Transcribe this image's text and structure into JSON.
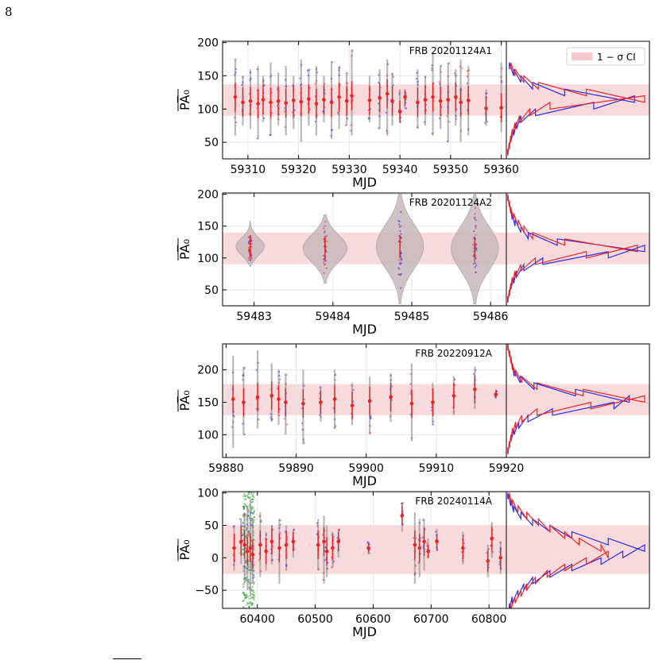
{
  "page_number": "8",
  "legend": {
    "label": "1 − σ CI",
    "swatch_color": "#f7c9cc"
  },
  "colors": {
    "grey": "#9a9a9a",
    "blue": "#2a2af0",
    "green": "#1f9a1f",
    "red": "#ee2222",
    "band": "#f9dadc",
    "grid": "#e6e6e6"
  },
  "chart_data": [
    {
      "type": "scatter",
      "title": "FRB 20201124A1",
      "xlabel": "MJD",
      "ylabel": "PA̅₀",
      "xlim": [
        59305,
        59361
      ],
      "ylim": [
        25,
        202
      ],
      "xticks": [
        59310,
        59320,
        59330,
        59340,
        59350,
        59360
      ],
      "yticks": [
        50,
        100,
        150,
        200
      ],
      "band": [
        90,
        137
      ],
      "bursts": [
        {
          "mjd": 59307.5,
          "pa": 118,
          "lo": 60,
          "hi": 175
        },
        {
          "mjd": 59309.0,
          "pa": 110,
          "lo": 75,
          "hi": 150
        },
        {
          "mjd": 59310.5,
          "pa": 112,
          "lo": 70,
          "hi": 160
        },
        {
          "mjd": 59312.0,
          "pa": 108,
          "lo": 55,
          "hi": 165
        },
        {
          "mjd": 59313.0,
          "pa": 114,
          "lo": 80,
          "hi": 150
        },
        {
          "mjd": 59314.5,
          "pa": 110,
          "lo": 60,
          "hi": 170
        },
        {
          "mjd": 59316.0,
          "pa": 112,
          "lo": 75,
          "hi": 155
        },
        {
          "mjd": 59317.5,
          "pa": 109,
          "lo": 60,
          "hi": 165
        },
        {
          "mjd": 59319.0,
          "pa": 113,
          "lo": 70,
          "hi": 150
        },
        {
          "mjd": 59320.5,
          "pa": 111,
          "lo": 50,
          "hi": 175
        },
        {
          "mjd": 59322.0,
          "pa": 115,
          "lo": 75,
          "hi": 160
        },
        {
          "mjd": 59323.5,
          "pa": 108,
          "lo": 60,
          "hi": 165
        },
        {
          "mjd": 59325.0,
          "pa": 114,
          "lo": 80,
          "hi": 150
        },
        {
          "mjd": 59326.5,
          "pa": 110,
          "lo": 55,
          "hi": 172
        },
        {
          "mjd": 59328.0,
          "pa": 118,
          "lo": 70,
          "hi": 165
        },
        {
          "mjd": 59329.5,
          "pa": 112,
          "lo": 75,
          "hi": 155
        },
        {
          "mjd": 59330.5,
          "pa": 120,
          "lo": 60,
          "hi": 190
        },
        {
          "mjd": 59334.0,
          "pa": 113,
          "lo": 80,
          "hi": 150
        },
        {
          "mjd": 59336.0,
          "pa": 117,
          "lo": 70,
          "hi": 160
        },
        {
          "mjd": 59337.5,
          "pa": 123,
          "lo": 60,
          "hi": 175
        },
        {
          "mjd": 59338.5,
          "pa": 112,
          "lo": 75,
          "hi": 155
        },
        {
          "mjd": 59340.0,
          "pa": 96,
          "lo": 80,
          "hi": 130
        },
        {
          "mjd": 59341.0,
          "pa": 118,
          "lo": 100,
          "hi": 130
        },
        {
          "mjd": 59343.5,
          "pa": 110,
          "lo": 70,
          "hi": 160
        },
        {
          "mjd": 59345.0,
          "pa": 114,
          "lo": 75,
          "hi": 150
        },
        {
          "mjd": 59346.5,
          "pa": 118,
          "lo": 60,
          "hi": 185
        },
        {
          "mjd": 59348.0,
          "pa": 112,
          "lo": 70,
          "hi": 165
        },
        {
          "mjd": 59349.5,
          "pa": 114,
          "lo": 50,
          "hi": 170
        },
        {
          "mjd": 59351.0,
          "pa": 118,
          "lo": 75,
          "hi": 160
        },
        {
          "mjd": 59352.0,
          "pa": 110,
          "lo": 50,
          "hi": 175
        },
        {
          "mjd": 59353.5,
          "pa": 113,
          "lo": 60,
          "hi": 165
        },
        {
          "mjd": 59357.0,
          "pa": 101,
          "lo": 75,
          "hi": 130
        },
        {
          "mjd": 59360.0,
          "pa": 102,
          "lo": 65,
          "hi": 170
        }
      ],
      "hist_bins": [
        35,
        45,
        55,
        65,
        75,
        85,
        95,
        105,
        115,
        125,
        135,
        145,
        155,
        165
      ],
      "hist_red": [
        1,
        2,
        3,
        4,
        6,
        9,
        16,
        30,
        95,
        55,
        22,
        12,
        6,
        3
      ],
      "hist_blue": [
        1,
        2,
        3,
        5,
        7,
        10,
        20,
        60,
        88,
        40,
        18,
        10,
        5,
        2
      ]
    },
    {
      "type": "violin",
      "title": "FRB 20201124A2",
      "xlabel": "MJD",
      "ylabel": "PA̅₀",
      "xlim": [
        59482.6,
        59486.2
      ],
      "ylim": [
        25,
        202
      ],
      "xticks": [
        59483,
        59484,
        59485,
        59486
      ],
      "yticks": [
        50,
        100,
        150,
        200
      ],
      "band": [
        90,
        140
      ],
      "violins": [
        {
          "mjd": 59482.95,
          "center": 118,
          "lo": 90,
          "hi": 158,
          "width": 0.18
        },
        {
          "mjd": 59483.9,
          "center": 115,
          "lo": 60,
          "hi": 168,
          "width": 0.28
        },
        {
          "mjd": 59484.85,
          "center": 118,
          "lo": 28,
          "hi": 200,
          "width": 0.3
        },
        {
          "mjd": 59485.8,
          "center": 115,
          "lo": 28,
          "hi": 200,
          "width": 0.3
        }
      ],
      "hist_bins": [
        35,
        45,
        55,
        65,
        75,
        85,
        95,
        105,
        115,
        125,
        135,
        145,
        155,
        165,
        175,
        185,
        195
      ],
      "hist_red": [
        1,
        2,
        3,
        4,
        6,
        10,
        20,
        55,
        90,
        40,
        18,
        12,
        8,
        5,
        3,
        2,
        1
      ],
      "hist_blue": [
        1,
        2,
        3,
        5,
        7,
        12,
        25,
        70,
        95,
        35,
        15,
        10,
        6,
        4,
        3,
        2,
        1
      ]
    },
    {
      "type": "scatter",
      "title": "FRB 20220912A",
      "xlabel": "MJD",
      "ylabel": "PA̅₀",
      "xlim": [
        59879.5,
        59920
      ],
      "ylim": [
        65,
        240
      ],
      "xticks": [
        59880,
        59890,
        59900,
        59910,
        59920
      ],
      "yticks": [
        100,
        150,
        200
      ],
      "band": [
        130,
        178
      ],
      "bursts": [
        {
          "mjd": 59881.0,
          "pa": 155,
          "lo": 80,
          "hi": 222
        },
        {
          "mjd": 59882.5,
          "pa": 150,
          "lo": 100,
          "hi": 205
        },
        {
          "mjd": 59884.5,
          "pa": 158,
          "lo": 110,
          "hi": 230
        },
        {
          "mjd": 59886.5,
          "pa": 160,
          "lo": 120,
          "hi": 210
        },
        {
          "mjd": 59887.5,
          "pa": 155,
          "lo": 115,
          "hi": 200
        },
        {
          "mjd": 59888.5,
          "pa": 150,
          "lo": 100,
          "hi": 195
        },
        {
          "mjd": 59891.0,
          "pa": 148,
          "lo": 85,
          "hi": 200
        },
        {
          "mjd": 59893.5,
          "pa": 150,
          "lo": 120,
          "hi": 175
        },
        {
          "mjd": 59895.5,
          "pa": 155,
          "lo": 110,
          "hi": 200
        },
        {
          "mjd": 59898.0,
          "pa": 145,
          "lo": 115,
          "hi": 180
        },
        {
          "mjd": 59900.5,
          "pa": 152,
          "lo": 100,
          "hi": 190
        },
        {
          "mjd": 59903.5,
          "pa": 158,
          "lo": 120,
          "hi": 195
        },
        {
          "mjd": 59906.5,
          "pa": 148,
          "lo": 90,
          "hi": 210
        },
        {
          "mjd": 59909.5,
          "pa": 150,
          "lo": 115,
          "hi": 180
        },
        {
          "mjd": 59912.5,
          "pa": 160,
          "lo": 130,
          "hi": 190
        },
        {
          "mjd": 59915.5,
          "pa": 170,
          "lo": 140,
          "hi": 205
        },
        {
          "mjd": 59918.5,
          "pa": 162,
          "lo": 155,
          "hi": 170
        }
      ],
      "hist_bins": [
        75,
        85,
        95,
        105,
        115,
        125,
        135,
        145,
        155,
        165,
        175,
        185,
        195,
        205,
        215,
        225,
        235
      ],
      "hist_red": [
        1,
        2,
        3,
        4,
        6,
        10,
        20,
        55,
        90,
        50,
        20,
        10,
        6,
        4,
        3,
        2,
        1
      ],
      "hist_blue": [
        1,
        2,
        3,
        5,
        8,
        14,
        30,
        70,
        80,
        45,
        18,
        9,
        5,
        4,
        3,
        2,
        1
      ]
    },
    {
      "type": "scatter",
      "title": "FRB 20240114A",
      "xlabel": "MJD",
      "ylabel": "PA̅₀",
      "xlim": [
        60340,
        60830
      ],
      "ylim": [
        -78,
        102
      ],
      "xticks": [
        60400,
        60500,
        60600,
        60700,
        60800
      ],
      "yticks": [
        -50,
        0,
        50,
        100
      ],
      "band": [
        -25,
        50
      ],
      "dense_mjd": [
        60375,
        60395
      ],
      "bursts": [
        {
          "mjd": 60360,
          "pa": 15,
          "lo": -20,
          "hi": 50
        },
        {
          "mjd": 60372,
          "pa": 25,
          "lo": -10,
          "hi": 60
        },
        {
          "mjd": 60378,
          "pa": 20,
          "lo": -40,
          "hi": 70
        },
        {
          "mjd": 60383,
          "pa": 10,
          "lo": -50,
          "hi": 80
        },
        {
          "mjd": 60388,
          "pa": 15,
          "lo": -60,
          "hi": 90
        },
        {
          "mjd": 60392,
          "pa": 5,
          "lo": -40,
          "hi": 60
        },
        {
          "mjd": 60405,
          "pa": 20,
          "lo": -30,
          "hi": 70
        },
        {
          "mjd": 60415,
          "pa": 10,
          "lo": -20,
          "hi": 40
        },
        {
          "mjd": 60425,
          "pa": 25,
          "lo": -10,
          "hi": 50
        },
        {
          "mjd": 60438,
          "pa": 15,
          "lo": -40,
          "hi": 60
        },
        {
          "mjd": 60450,
          "pa": 20,
          "lo": -20,
          "hi": 50
        },
        {
          "mjd": 60462,
          "pa": 25,
          "lo": 0,
          "hi": 45
        },
        {
          "mjd": 60505,
          "pa": 20,
          "lo": -20,
          "hi": 60
        },
        {
          "mjd": 60515,
          "pa": 25,
          "lo": -40,
          "hi": 65
        },
        {
          "mjd": 60520,
          "pa": 10,
          "lo": -30,
          "hi": 50
        },
        {
          "mjd": 60530,
          "pa": 15,
          "lo": -15,
          "hi": 40
        },
        {
          "mjd": 60540,
          "pa": 25,
          "lo": 0,
          "hi": 45
        },
        {
          "mjd": 60592,
          "pa": 15,
          "lo": 5,
          "hi": 25
        },
        {
          "mjd": 60650,
          "pa": 65,
          "lo": 40,
          "hi": 85
        },
        {
          "mjd": 60672,
          "pa": 20,
          "lo": -40,
          "hi": 70
        },
        {
          "mjd": 60680,
          "pa": 15,
          "lo": -30,
          "hi": 60
        },
        {
          "mjd": 60688,
          "pa": 25,
          "lo": -20,
          "hi": 60
        },
        {
          "mjd": 60695,
          "pa": 10,
          "lo": 0,
          "hi": 30
        },
        {
          "mjd": 60710,
          "pa": 25,
          "lo": 10,
          "hi": 45
        },
        {
          "mjd": 60755,
          "pa": 15,
          "lo": -10,
          "hi": 40
        },
        {
          "mjd": 60798,
          "pa": -5,
          "lo": -30,
          "hi": 20
        },
        {
          "mjd": 60805,
          "pa": 30,
          "lo": 0,
          "hi": 55
        },
        {
          "mjd": 60820,
          "pa": 0,
          "lo": -25,
          "hi": 25
        }
      ],
      "hist_bins": [
        -75,
        -65,
        -55,
        -45,
        -35,
        -25,
        -15,
        -5,
        5,
        15,
        25,
        35,
        45,
        55,
        65,
        75,
        85,
        95
      ],
      "hist_red": [
        3,
        6,
        10,
        14,
        20,
        28,
        40,
        55,
        70,
        65,
        50,
        40,
        30,
        22,
        14,
        8,
        4,
        2
      ],
      "hist_blue": [
        2,
        4,
        8,
        12,
        18,
        30,
        45,
        65,
        80,
        95,
        70,
        45,
        30,
        18,
        10,
        5,
        3,
        1
      ]
    }
  ]
}
